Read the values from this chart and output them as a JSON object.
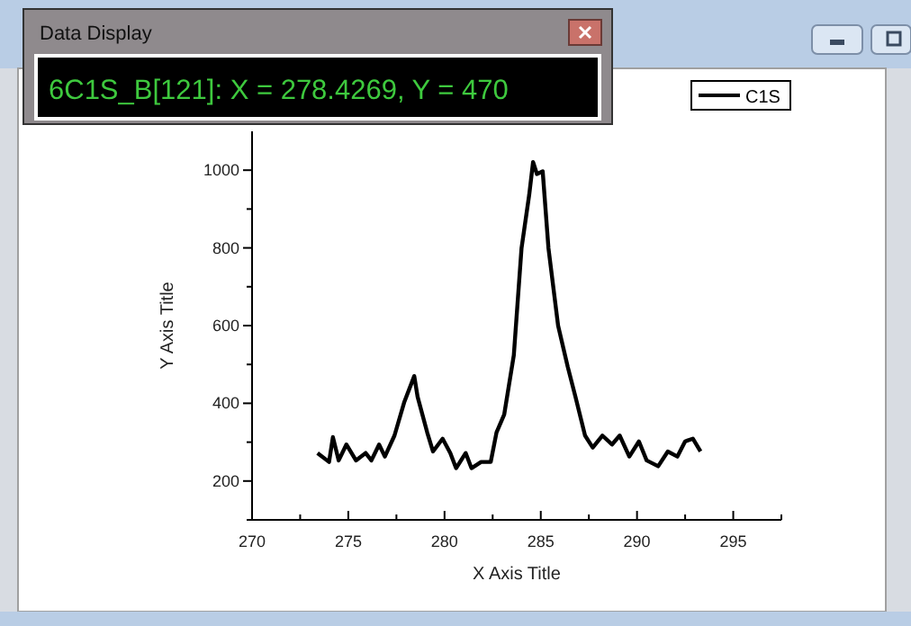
{
  "chart_data": {
    "type": "line",
    "xlabel": "X  Axis Title",
    "ylabel": "Y Axis Title",
    "xlim": [
      270,
      297.5
    ],
    "ylim": [
      100,
      1100
    ],
    "xticks": [
      270,
      {
        "value": 272.5,
        "label": null
      },
      275,
      {
        "value": 277.5,
        "label": null
      },
      280,
      {
        "value": 282.5,
        "label": null
      },
      285,
      {
        "value": 287.5,
        "label": null
      },
      290,
      {
        "value": 292.5,
        "label": null
      },
      295,
      {
        "value": 297.5,
        "label": null
      }
    ],
    "yticks": [
      {
        "value": 100,
        "label": null
      },
      200,
      {
        "value": 300,
        "label": null
      },
      400,
      {
        "value": 500,
        "label": null
      },
      600,
      {
        "value": 700,
        "label": null
      },
      800,
      {
        "value": 900,
        "label": null
      },
      1000
    ],
    "grid": false,
    "legend": "top right",
    "marker": "none",
    "line_style": "solid",
    "x": [
      273.4,
      274.0,
      274.2,
      274.5,
      274.9,
      275.4,
      275.9,
      276.2,
      276.6,
      276.9,
      277.4,
      277.9,
      278.4269,
      278.6,
      279.1,
      279.4,
      279.9,
      280.3,
      280.6,
      281.1,
      281.4,
      281.9,
      282.4,
      282.7,
      283.1,
      283.6,
      284.0,
      284.4,
      284.6,
      284.8,
      285.1,
      285.4,
      285.9,
      286.4,
      286.8,
      287.3,
      287.7,
      288.2,
      288.7,
      289.1,
      289.6,
      290.1,
      290.5,
      291.1,
      291.6,
      292.1,
      292.5,
      292.9,
      293.3
    ],
    "series": [
      {
        "name": "C1S",
        "color": "#000000",
        "values": [
          272,
          249,
          313,
          253,
          294,
          253,
          272,
          253,
          294,
          263,
          317,
          402,
          470,
          417,
          325,
          276,
          309,
          272,
          233,
          272,
          233,
          249,
          249,
          325,
          371,
          524,
          799,
          937,
          1021,
          990,
          997,
          799,
          600,
          494,
          417,
          317,
          286,
          317,
          294,
          317,
          263,
          302,
          253,
          238,
          276,
          263,
          302,
          309,
          276
        ]
      }
    ],
    "annotations": [
      "Data Display",
      "6C1S_B[121]: X = 278.4269, Y = 470"
    ]
  }
}
